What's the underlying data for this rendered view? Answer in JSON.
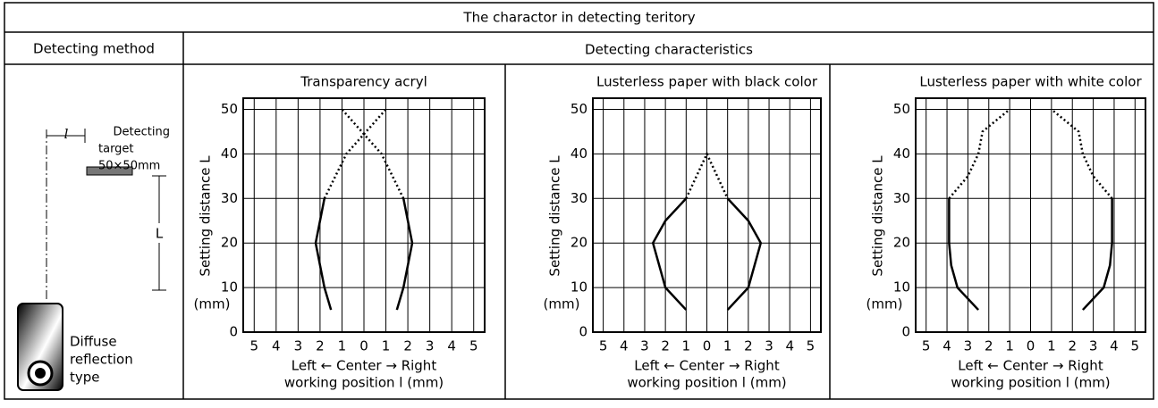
{
  "header": {
    "title": "The charactor in detecting teritory"
  },
  "columns": {
    "method": "Detecting method",
    "characteristics": "Detecting characteristics"
  },
  "method": {
    "target_label": [
      "Detecting",
      "target",
      "50×50mm"
    ],
    "offset_symbol": "l",
    "distance_symbol": "L",
    "sensor_label": [
      "Diffuse",
      "reflection",
      "type"
    ]
  },
  "chart_data": [
    {
      "type": "line",
      "title": "Transparency acryl",
      "y_label": "Setting distance L",
      "y_unit": "(mm)",
      "x_label": [
        "Left ← Center → Right",
        "working position l (mm)"
      ],
      "xlim": [
        -5.5,
        5.5
      ],
      "ylim": [
        0,
        52.5
      ],
      "xticks": [
        {
          "value": -5,
          "label": "5"
        },
        {
          "value": -4,
          "label": "4"
        },
        {
          "value": -3,
          "label": "3"
        },
        {
          "value": -2,
          "label": "2"
        },
        {
          "value": -1,
          "label": "1"
        },
        0,
        1,
        2,
        3,
        4,
        5
      ],
      "yticks": [
        0,
        10,
        20,
        30,
        40,
        50
      ],
      "grid": true,
      "series": [
        {
          "style": "solid",
          "color": "#000000",
          "x": [
            -1.5,
            -1.8,
            -2.2,
            -1.8
          ],
          "values": [
            5,
            10,
            20,
            30
          ]
        },
        {
          "style": "dotted",
          "color": "#000000",
          "x": [
            -1.8,
            -0.8,
            1
          ],
          "values": [
            30,
            40,
            50
          ]
        },
        {
          "style": "solid",
          "color": "#000000",
          "x": [
            1.5,
            1.8,
            2.2,
            1.8
          ],
          "values": [
            5,
            10,
            20,
            30
          ]
        },
        {
          "style": "dotted",
          "color": "#000000",
          "x": [
            1.8,
            0.8,
            -1
          ],
          "values": [
            30,
            40,
            50
          ]
        }
      ]
    },
    {
      "type": "line",
      "title": "Lusterless paper with black color",
      "y_label": "Setting distance L",
      "y_unit": "(mm)",
      "x_label": [
        "Left ← Center → Right",
        "working position l (mm)"
      ],
      "xlim": [
        -5.5,
        5.5
      ],
      "ylim": [
        0,
        52.5
      ],
      "xticks": [
        {
          "value": -5,
          "label": "5"
        },
        {
          "value": -4,
          "label": "4"
        },
        {
          "value": -3,
          "label": "3"
        },
        {
          "value": -2,
          "label": "2"
        },
        {
          "value": -1,
          "label": "1"
        },
        0,
        1,
        2,
        3,
        4,
        5
      ],
      "yticks": [
        0,
        10,
        20,
        30,
        40,
        50
      ],
      "grid": true,
      "series": [
        {
          "style": "solid",
          "color": "#000000",
          "x": [
            -1,
            -2,
            -2.6,
            -2,
            -1
          ],
          "values": [
            5,
            10,
            20,
            25,
            30
          ]
        },
        {
          "style": "dotted",
          "color": "#000000",
          "x": [
            -1,
            0,
            1
          ],
          "values": [
            30,
            40,
            30
          ]
        },
        {
          "style": "solid",
          "color": "#000000",
          "x": [
            1,
            2,
            2.6,
            2,
            1
          ],
          "values": [
            5,
            10,
            20,
            25,
            30
          ]
        }
      ]
    },
    {
      "type": "line",
      "title": "Lusterless paper with white color",
      "y_label": "Setting distance L",
      "y_unit": "(mm)",
      "x_label": [
        "Left ← Center → Right",
        "working position l (mm)"
      ],
      "xlim": [
        -5.5,
        5.5
      ],
      "ylim": [
        0,
        52.5
      ],
      "xticks": [
        {
          "value": -5,
          "label": "5"
        },
        {
          "value": -4,
          "label": "4"
        },
        {
          "value": -3,
          "label": "3"
        },
        {
          "value": -2,
          "label": "2"
        },
        {
          "value": -1,
          "label": "1"
        },
        0,
        1,
        2,
        3,
        4,
        5
      ],
      "yticks": [
        0,
        10,
        20,
        30,
        40,
        50
      ],
      "grid": true,
      "series": [
        {
          "style": "solid",
          "color": "#000000",
          "x": [
            -2.5,
            -3.5,
            -3.8,
            -3.9,
            -3.9
          ],
          "values": [
            5,
            10,
            15,
            20,
            30
          ]
        },
        {
          "style": "dotted",
          "color": "#000000",
          "x": [
            -3.9,
            -3,
            -2.5,
            -2.3,
            -1
          ],
          "values": [
            30,
            35,
            40,
            45,
            50
          ]
        },
        {
          "style": "solid",
          "color": "#000000",
          "x": [
            2.5,
            3.5,
            3.8,
            3.9,
            3.9
          ],
          "values": [
            5,
            10,
            15,
            20,
            30
          ]
        },
        {
          "style": "dotted",
          "color": "#000000",
          "x": [
            3.9,
            3,
            2.5,
            2.3,
            1
          ],
          "values": [
            30,
            35,
            40,
            45,
            50
          ]
        }
      ]
    }
  ]
}
